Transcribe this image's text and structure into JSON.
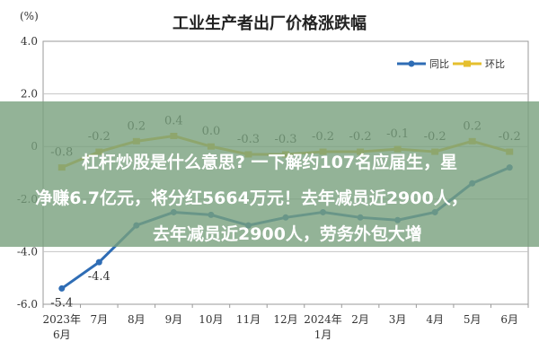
{
  "chart_data": {
    "type": "line",
    "title": "工业生产者出厂价格涨跌幅",
    "ylabel": "(%)",
    "ylim": [
      -6.0,
      4.0
    ],
    "yticks": [
      "4.0",
      "2.0",
      "0",
      "-2.0",
      "-4.0",
      "-6.0"
    ],
    "ytick_values": [
      4,
      2,
      0,
      -2,
      -4,
      -6
    ],
    "categories": [
      "2023年6月",
      "7月",
      "8月",
      "9月",
      "10月",
      "11月",
      "12月",
      "2024年1月",
      "2月",
      "3月",
      "4月",
      "5月",
      "6月"
    ],
    "category_lines": [
      [
        "2023年",
        "6月"
      ],
      [
        "7月"
      ],
      [
        "8月"
      ],
      [
        "9月"
      ],
      [
        "10月"
      ],
      [
        "11月"
      ],
      [
        "12月"
      ],
      [
        "2024年",
        "1月"
      ],
      [
        "2月"
      ],
      [
        "3月"
      ],
      [
        "4月"
      ],
      [
        "5月"
      ],
      [
        "6月"
      ]
    ],
    "series": [
      {
        "name": "同比",
        "color": "#2f6db5",
        "values": [
          -5.4,
          -4.4,
          -3.0,
          -2.5,
          -2.6,
          -3.0,
          -2.7,
          -2.5,
          -2.7,
          -2.8,
          -2.5,
          -1.4,
          -0.8
        ],
        "labels": [
          "-5.4",
          "-4.4",
          null,
          null,
          null,
          null,
          null,
          null,
          null,
          null,
          null,
          null,
          null
        ]
      },
      {
        "name": "环比",
        "color": "#e5bf2e",
        "values": [
          -0.8,
          -0.2,
          0.2,
          0.4,
          0.0,
          -0.3,
          -0.3,
          -0.2,
          -0.2,
          -0.1,
          -0.2,
          0.2,
          -0.2
        ],
        "labels": [
          "-0.8",
          "-0.2",
          "0.2",
          "0.4",
          "0.0",
          "-0.3",
          "-0.3",
          "-0.2",
          "-0.2",
          "-0.1",
          "-0.2",
          "0.2",
          "-0.2"
        ]
      }
    ],
    "legend": "top-right",
    "grid": true
  },
  "overlay": {
    "line1": "杠杆炒股是什么意思? 一下解约107名应届生，星",
    "line2": "净赚6.7亿元，将分红5664万元！去年减员近2900人，",
    "line3": "去年减员近2900人，劳务外包大增"
  }
}
